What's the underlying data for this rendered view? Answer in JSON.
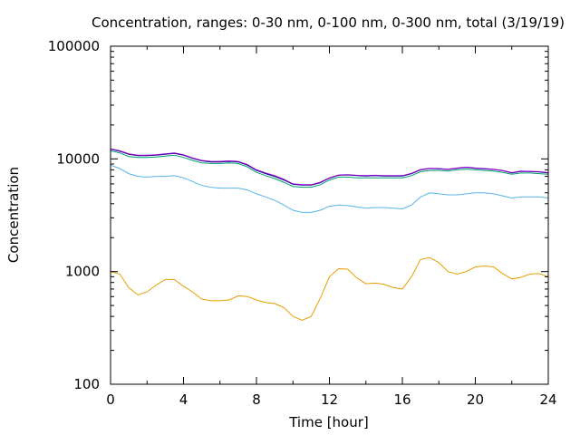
{
  "chart_data": {
    "type": "line",
    "title": "Concentration, ranges: 0-30 nm, 0-100 nm, 0-300 nm, total (3/19/19)",
    "xlabel": "Time [hour]",
    "ylabel": "Concentration",
    "xlim": [
      0,
      24
    ],
    "ylim": [
      100,
      100000
    ],
    "yscale": "log",
    "grid": false,
    "legend": "none",
    "x_ticks": [
      0,
      4,
      8,
      12,
      16,
      20,
      24
    ],
    "x_tick_labels": [
      "0",
      "4",
      "8",
      "12",
      "16",
      "20",
      "24"
    ],
    "y_ticks": [
      100,
      1000,
      10000,
      100000
    ],
    "y_tick_labels": [
      "100",
      "1000",
      "10000",
      "100000"
    ],
    "series": [
      {
        "color": "#E69F00",
        "x": [
          0,
          0.5,
          1,
          1.5,
          2,
          2.5,
          3,
          3.5,
          4,
          4.5,
          5,
          5.5,
          6,
          6.5,
          7,
          7.5,
          8,
          8.5,
          9,
          9.5,
          10,
          10.5,
          11,
          11.5,
          12,
          12.5,
          13,
          13.5,
          14,
          14.5,
          15,
          15.5,
          16,
          16.5,
          17,
          17.5,
          18,
          18.5,
          19,
          19.5,
          20,
          20.5,
          21,
          21.5,
          22,
          22.5,
          23,
          23.5,
          24
        ],
        "values": [
          1000,
          950,
          720,
          620,
          660,
          760,
          850,
          850,
          740,
          660,
          570,
          550,
          550,
          560,
          610,
          600,
          560,
          530,
          520,
          480,
          400,
          370,
          400,
          580,
          900,
          1060,
          1050,
          880,
          780,
          790,
          770,
          720,
          700,
          900,
          1280,
          1330,
          1200,
          1000,
          950,
          1000,
          1100,
          1120,
          1100,
          960,
          860,
          890,
          950,
          960,
          900
        ]
      },
      {
        "color": "#56B4E9",
        "x": [
          0,
          0.5,
          1,
          1.5,
          2,
          2.5,
          3,
          3.5,
          4,
          4.5,
          5,
          5.5,
          6,
          6.5,
          7,
          7.5,
          8,
          8.5,
          9,
          9.5,
          10,
          10.5,
          11,
          11.5,
          12,
          12.5,
          13,
          13.5,
          14,
          14.5,
          15,
          15.5,
          16,
          16.5,
          17,
          17.5,
          18,
          18.5,
          19,
          19.5,
          20,
          20.5,
          21,
          21.5,
          22,
          22.5,
          23,
          23.5,
          24
        ],
        "values": [
          8800,
          8200,
          7400,
          7000,
          6900,
          7000,
          7000,
          7100,
          6800,
          6300,
          5800,
          5600,
          5500,
          5500,
          5500,
          5300,
          4900,
          4600,
          4300,
          3900,
          3500,
          3350,
          3350,
          3500,
          3800,
          3900,
          3850,
          3750,
          3650,
          3700,
          3700,
          3650,
          3600,
          3900,
          4600,
          5000,
          4900,
          4800,
          4800,
          4900,
          5000,
          5000,
          4900,
          4700,
          4500,
          4600,
          4600,
          4600,
          4500
        ]
      },
      {
        "color": "#009E73",
        "x": [
          0,
          0.5,
          1,
          1.5,
          2,
          2.5,
          3,
          3.5,
          4,
          4.5,
          5,
          5.5,
          6,
          6.5,
          7,
          7.5,
          8,
          8.5,
          9,
          9.5,
          10,
          10.5,
          11,
          11.5,
          12,
          12.5,
          13,
          13.5,
          14,
          14.5,
          15,
          15.5,
          16,
          16.5,
          17,
          17.5,
          18,
          18.5,
          19,
          19.5,
          20,
          20.5,
          21,
          21.5,
          22,
          22.5,
          23,
          23.5,
          24
        ],
        "values": [
          11800,
          11300,
          10500,
          10300,
          10300,
          10400,
          10600,
          10800,
          10300,
          9700,
          9200,
          9100,
          9100,
          9200,
          9100,
          8500,
          7600,
          7100,
          6700,
          6200,
          5700,
          5600,
          5600,
          5900,
          6500,
          6900,
          6900,
          6800,
          6800,
          6800,
          6800,
          6800,
          6800,
          7100,
          7700,
          7900,
          7900,
          7800,
          8000,
          8100,
          8000,
          7900,
          7800,
          7600,
          7300,
          7500,
          7500,
          7400,
          7300
        ]
      },
      {
        "color": "#000080",
        "x": [
          0,
          0.5,
          1,
          1.5,
          2,
          2.5,
          3,
          3.5,
          4,
          4.5,
          5,
          5.5,
          6,
          6.5,
          7,
          7.5,
          8,
          8.5,
          9,
          9.5,
          10,
          10.5,
          11,
          11.5,
          12,
          12.5,
          13,
          13.5,
          14,
          14.5,
          15,
          15.5,
          16,
          16.5,
          17,
          17.5,
          18,
          18.5,
          19,
          19.5,
          20,
          20.5,
          21,
          21.5,
          22,
          22.5,
          23,
          23.5,
          24
        ],
        "values": [
          12200,
          11700,
          11000,
          10700,
          10700,
          10800,
          11000,
          11200,
          10800,
          10100,
          9600,
          9400,
          9400,
          9500,
          9400,
          8800,
          7900,
          7400,
          7000,
          6500,
          5950,
          5850,
          5850,
          6150,
          6750,
          7150,
          7200,
          7100,
          7050,
          7100,
          7050,
          7050,
          7050,
          7400,
          8000,
          8200,
          8150,
          8050,
          8250,
          8400,
          8250,
          8150,
          8050,
          7850,
          7500,
          7750,
          7700,
          7650,
          7500
        ]
      },
      {
        "color": "#9400D3",
        "x": [
          0,
          0.5,
          1,
          1.5,
          2,
          2.5,
          3,
          3.5,
          4,
          4.5,
          5,
          5.5,
          6,
          6.5,
          7,
          7.5,
          8,
          8.5,
          9,
          9.5,
          10,
          10.5,
          11,
          11.5,
          12,
          12.5,
          13,
          13.5,
          14,
          14.5,
          15,
          15.5,
          16,
          16.5,
          17,
          17.5,
          18,
          18.5,
          19,
          19.5,
          20,
          20.5,
          21,
          21.5,
          22,
          22.5,
          23,
          23.5,
          24
        ],
        "values": [
          12300,
          11800,
          11100,
          10800,
          10800,
          10900,
          11100,
          11300,
          10900,
          10200,
          9700,
          9500,
          9500,
          9600,
          9500,
          8900,
          8000,
          7500,
          7100,
          6600,
          6000,
          5900,
          5900,
          6200,
          6800,
          7200,
          7250,
          7150,
          7100,
          7150,
          7100,
          7100,
          7100,
          7450,
          8050,
          8250,
          8200,
          8100,
          8300,
          8450,
          8300,
          8200,
          8100,
          7900,
          7550,
          7800,
          7750,
          7700,
          7550
        ]
      }
    ]
  }
}
